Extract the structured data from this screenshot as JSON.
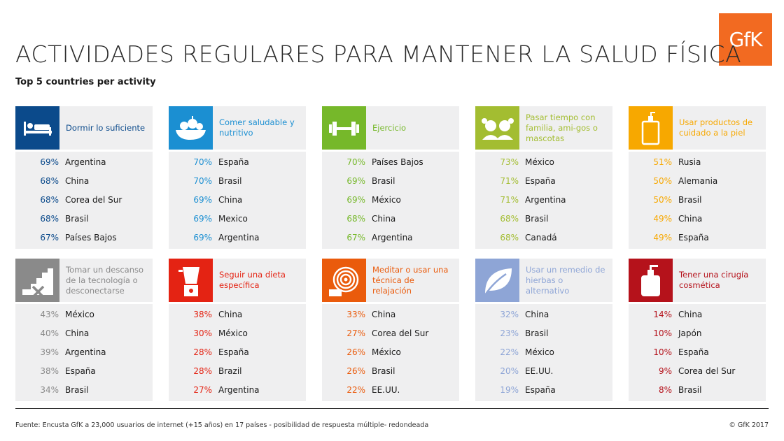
{
  "title": "ACTIVIDADES REGULARES PARA MANTENER LA SALUD FÍSICA",
  "subtitle": "Top 5 countries per activity",
  "logo_text": "GfK",
  "footer": "Fuente: Encusta GfK a 23,000 usuarios de internet (+15 años) en 17 países - posibilidad de respuesta múltiple- redondeada",
  "copyright": "© GfK 2017",
  "chart_data": {
    "type": "table",
    "title": "ACTIVIDADES REGULARES PARA MANTENER LA SALUD FÍSICA",
    "subtitle": "Top 5 countries per activity",
    "activities": [
      {
        "label": "Dormir lo suficiente",
        "icon": "bed-icon",
        "color": "#0b4a8b",
        "rows": [
          {
            "pct": "69%",
            "country": "Argentina"
          },
          {
            "pct": "68%",
            "country": "China"
          },
          {
            "pct": "68%",
            "country": "Corea del Sur"
          },
          {
            "pct": "68%",
            "country": "Brasil"
          },
          {
            "pct": "67%",
            "country": "Países Bajos"
          }
        ]
      },
      {
        "label": "Comer saludable y nutritivo",
        "icon": "food-bowl-icon",
        "color": "#1b8fd2",
        "rows": [
          {
            "pct": "70%",
            "country": "España"
          },
          {
            "pct": "70%",
            "country": "Brasil"
          },
          {
            "pct": "69%",
            "country": "China"
          },
          {
            "pct": "69%",
            "country": "Mexico"
          },
          {
            "pct": "69%",
            "country": "Argentina"
          }
        ]
      },
      {
        "label": "Ejercicio",
        "icon": "dumbbell-icon",
        "color": "#76b82a",
        "rows": [
          {
            "pct": "70%",
            "country": "Países Bajos"
          },
          {
            "pct": "69%",
            "country": "Brasil"
          },
          {
            "pct": "69%",
            "country": "México"
          },
          {
            "pct": "68%",
            "country": "China"
          },
          {
            "pct": "67%",
            "country": "Argentina"
          }
        ]
      },
      {
        "label": "Pasar tiempo con familia, ami-gos o mascotas",
        "icon": "family-icon",
        "color": "#a3bd31",
        "rows": [
          {
            "pct": "73%",
            "country": "México"
          },
          {
            "pct": "71%",
            "country": "España"
          },
          {
            "pct": "71%",
            "country": "Argentina"
          },
          {
            "pct": "68%",
            "country": "Brasil"
          },
          {
            "pct": "68%",
            "country": "Canadá"
          }
        ]
      },
      {
        "label": "Usar productos de cuidado a la piel",
        "icon": "skincare-bottle-icon",
        "color": "#f7a800",
        "rows": [
          {
            "pct": "51%",
            "country": "Rusia"
          },
          {
            "pct": "50%",
            "country": "Alemania"
          },
          {
            "pct": "50%",
            "country": "Brasil"
          },
          {
            "pct": "49%",
            "country": "China"
          },
          {
            "pct": "49%",
            "country": "España"
          }
        ]
      },
      {
        "label": "Tomar un descanso de la tecnología o desconectarse",
        "icon": "disconnect-icon",
        "color": "#8a8a8a",
        "rows": [
          {
            "pct": "43%",
            "country": "México"
          },
          {
            "pct": "40%",
            "country": "China"
          },
          {
            "pct": "39%",
            "country": "Argentina"
          },
          {
            "pct": "38%",
            "country": "España"
          },
          {
            "pct": "34%",
            "country": "Brasil"
          }
        ]
      },
      {
        "label": "Seguir una dieta específica",
        "icon": "blender-icon",
        "color": "#e42313",
        "rows": [
          {
            "pct": "38%",
            "country": "China"
          },
          {
            "pct": "30%",
            "country": "México"
          },
          {
            "pct": "28%",
            "country": "España"
          },
          {
            "pct": "28%",
            "country": "Brazil"
          },
          {
            "pct": "27%",
            "country": "Argentina"
          }
        ]
      },
      {
        "label": "Meditar o usar una técnica de relajación",
        "icon": "spiral-icon",
        "color": "#ea5b0c",
        "rows": [
          {
            "pct": "33%",
            "country": "China"
          },
          {
            "pct": "27%",
            "country": "Corea del Sur"
          },
          {
            "pct": "26%",
            "country": "México"
          },
          {
            "pct": "26%",
            "country": "Brasil"
          },
          {
            "pct": "22%",
            "country": "EE.UU."
          }
        ]
      },
      {
        "label": "Usar un remedio de hierbas o alternativo",
        "icon": "leaf-icon",
        "color": "#8ea5d6",
        "rows": [
          {
            "pct": "32%",
            "country": "China"
          },
          {
            "pct": "23%",
            "country": "Brasil"
          },
          {
            "pct": "22%",
            "country": "México"
          },
          {
            "pct": "20%",
            "country": "EE.UU."
          },
          {
            "pct": "19%",
            "country": "España"
          }
        ]
      },
      {
        "label": "Tener una cirugía cosmética",
        "icon": "pump-bottle-icon",
        "color": "#b5121b",
        "rows": [
          {
            "pct": "14%",
            "country": "China"
          },
          {
            "pct": "10%",
            "country": "Japón"
          },
          {
            "pct": "10%",
            "country": "España"
          },
          {
            "pct": "9%",
            "country": "Corea del Sur"
          },
          {
            "pct": "8%",
            "country": "Brasil"
          }
        ]
      }
    ]
  }
}
